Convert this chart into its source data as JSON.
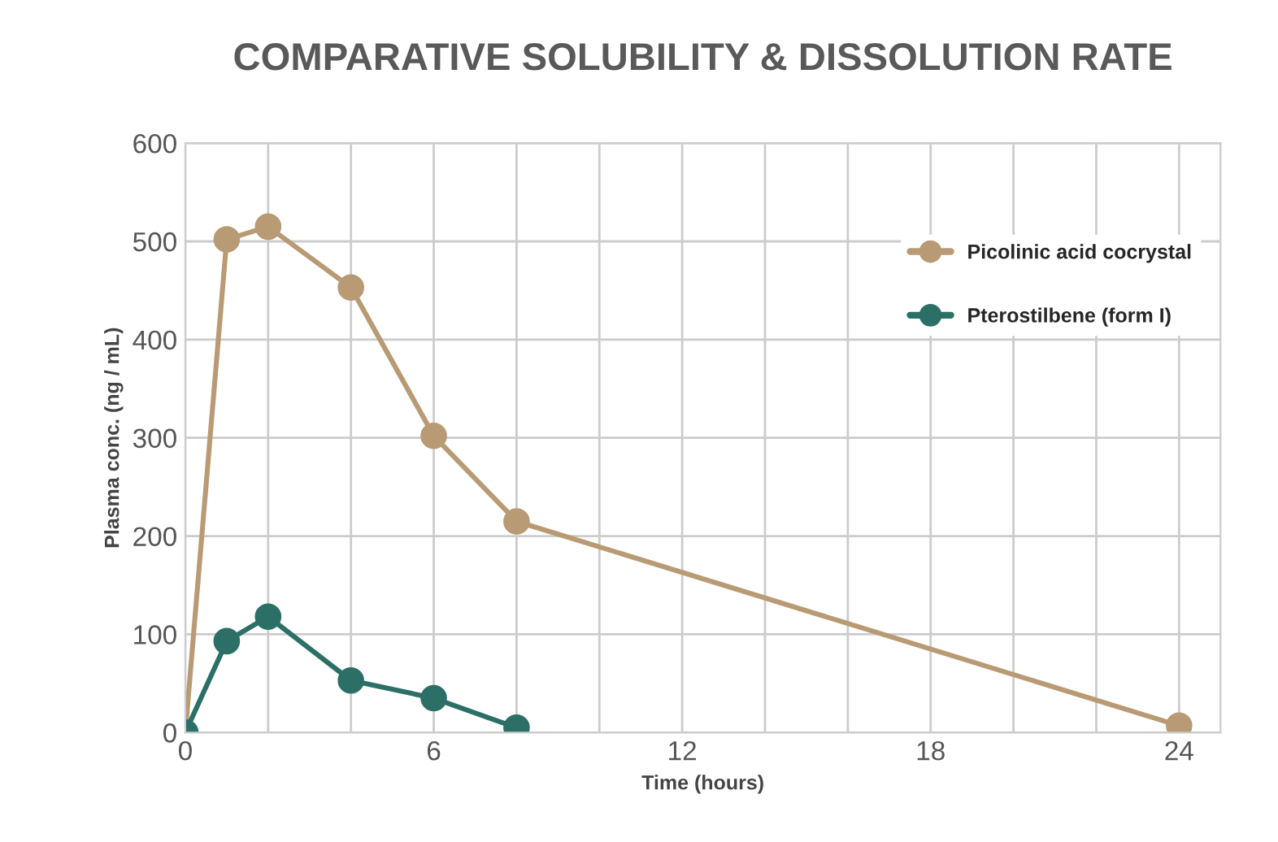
{
  "chart_data": {
    "type": "line",
    "title": "COMPARATIVE SOLUBILITY & DISSOLUTION RATE",
    "xlabel": "Time (hours)",
    "ylabel": "Plasma conc. (ng / mL)",
    "series": [
      {
        "name": "Picolinic acid cocrystal",
        "color": "#b89b74",
        "x": [
          0,
          1,
          2,
          4,
          6,
          8,
          24
        ],
        "values": [
          0,
          502,
          515,
          453,
          302,
          215,
          7
        ]
      },
      {
        "name": "Pterostilbene (form I)",
        "color": "#2b6f66",
        "x": [
          0,
          1,
          2,
          4,
          6,
          8
        ],
        "values": [
          0,
          93,
          118,
          53,
          35,
          5
        ]
      }
    ],
    "xlim": [
      0,
      25
    ],
    "xticks": [
      0,
      {
        "value": 2,
        "label": null
      },
      {
        "value": 4,
        "label": null
      },
      6,
      {
        "value": 8,
        "label": null
      },
      {
        "value": 10,
        "label": null
      },
      12,
      {
        "value": 14,
        "label": null
      },
      {
        "value": 16,
        "label": null
      },
      18,
      {
        "value": 20,
        "label": null
      },
      {
        "value": 22,
        "label": null
      },
      24
    ],
    "ylim": [
      0,
      600
    ],
    "yticks": [
      0,
      100,
      200,
      300,
      400,
      500,
      600
    ],
    "grid": true,
    "legend": "top right",
    "marker": "circle",
    "line_style": "solid"
  }
}
